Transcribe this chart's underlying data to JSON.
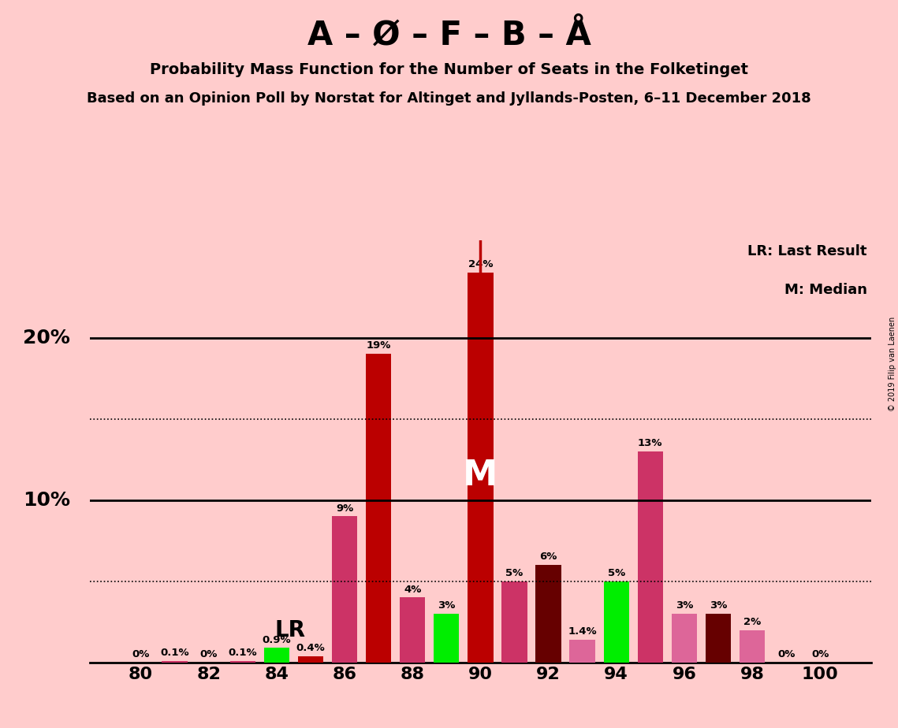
{
  "title1": "A – Ø – F – B – Å",
  "title2": "Probability Mass Function for the Number of Seats in the Folketinget",
  "title3": "Based on an Opinion Poll by Norstat for Altinget and Jyllands-Posten, 6–11 December 2018",
  "copyright": "© 2019 Filip van Laenen",
  "background_color": "#ffcccc",
  "bars": [
    {
      "seat": 80,
      "value": 0.0,
      "color": "#cc3366"
    },
    {
      "seat": 81,
      "value": 0.1,
      "color": "#cc3366"
    },
    {
      "seat": 82,
      "value": 0.0,
      "color": "#cc3366"
    },
    {
      "seat": 83,
      "value": 0.1,
      "color": "#cc3366"
    },
    {
      "seat": 84,
      "value": 0.9,
      "color": "#00ee00"
    },
    {
      "seat": 85,
      "value": 0.4,
      "color": "#bb0000"
    },
    {
      "seat": 86,
      "value": 9.0,
      "color": "#cc3366"
    },
    {
      "seat": 87,
      "value": 19.0,
      "color": "#bb0000"
    },
    {
      "seat": 88,
      "value": 4.0,
      "color": "#cc3366"
    },
    {
      "seat": 89,
      "value": 3.0,
      "color": "#00ee00"
    },
    {
      "seat": 90,
      "value": 24.0,
      "color": "#bb0000"
    },
    {
      "seat": 91,
      "value": 5.0,
      "color": "#cc3366"
    },
    {
      "seat": 92,
      "value": 6.0,
      "color": "#660000"
    },
    {
      "seat": 93,
      "value": 1.4,
      "color": "#dd6699"
    },
    {
      "seat": 94,
      "value": 5.0,
      "color": "#00ee00"
    },
    {
      "seat": 95,
      "value": 13.0,
      "color": "#cc3366"
    },
    {
      "seat": 96,
      "value": 3.0,
      "color": "#dd6699"
    },
    {
      "seat": 97,
      "value": 3.0,
      "color": "#660000"
    },
    {
      "seat": 98,
      "value": 2.0,
      "color": "#dd6699"
    },
    {
      "seat": 99,
      "value": 0.0,
      "color": "#dd6699"
    },
    {
      "seat": 100,
      "value": 0.0,
      "color": "#dd6699"
    }
  ],
  "bar_labels": {
    "80": "0%",
    "81": "0.1%",
    "82": "0%",
    "83": "0.1%",
    "84": "0.9%",
    "85": "0.4%",
    "86": "9%",
    "87": "19%",
    "88": "4%",
    "89": "3%",
    "90": "24%",
    "91": "5%",
    "92": "6%",
    "93": "1.4%",
    "94": "5%",
    "95": "13%",
    "96": "3%",
    "97": "3%",
    "98": "2%",
    "99": "0%",
    "100": "0%"
  },
  "lr_seat": 85,
  "median_seat": 90,
  "ylim": [
    0,
    26
  ],
  "solid_hlines": [
    10.0,
    20.0
  ],
  "dotted_hlines": [
    5.0,
    15.0
  ],
  "legend_lr": "LR: Last Result",
  "legend_m": "M: Median",
  "xticks": [
    80,
    82,
    84,
    86,
    88,
    90,
    92,
    94,
    96,
    98,
    100
  ],
  "ytick_labels_left": [
    [
      "10%",
      10.0
    ],
    [
      "20%",
      20.0
    ]
  ]
}
